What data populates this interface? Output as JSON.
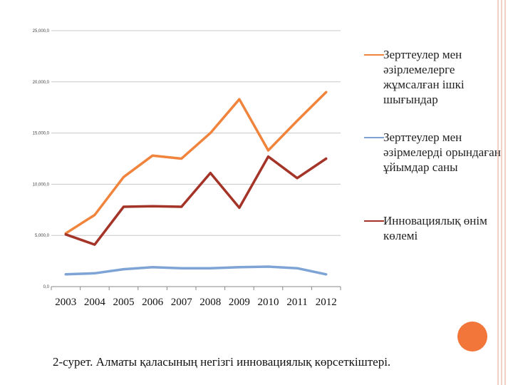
{
  "chart_data": {
    "type": "line",
    "categories": [
      "2003",
      "2004",
      "2005",
      "2006",
      "2007",
      "2008",
      "2009",
      "2010",
      "2011",
      "2012"
    ],
    "ylim": [
      0,
      25000
    ],
    "yticks": [
      "0,0",
      "5,000,0",
      "10,000,0",
      "15,000,0",
      "20,000,0",
      "25,000,0"
    ],
    "grid": true,
    "legend_position": "right",
    "series": [
      {
        "name": "Зерттеулер мен әзірлемелерге жұмсалған ішкі шығындар",
        "color": "#f0843c",
        "values": [
          5200,
          7000,
          10700,
          12800,
          12500,
          15000,
          18300,
          13300,
          16200,
          19000
        ]
      },
      {
        "name": "Зерттеулер мен әзірмелерді орындаған ұйымдар саны",
        "color": "#7ea4d6",
        "values": [
          1200,
          1300,
          1700,
          1900,
          1800,
          1800,
          1900,
          1950,
          1800,
          1200
        ]
      },
      {
        "name": "Инновациялық өнім көлемі",
        "color": "#a33427",
        "values": [
          5100,
          4100,
          7800,
          7850,
          7800,
          11100,
          7700,
          12700,
          10600,
          12500
        ]
      }
    ]
  },
  "caption": "2-сурет. Алматы қаласының негізгі инновациялық көрсеткіштері.",
  "colors": {
    "accent_dot": "#f2753a",
    "deco_lines": "#e9a28a"
  }
}
